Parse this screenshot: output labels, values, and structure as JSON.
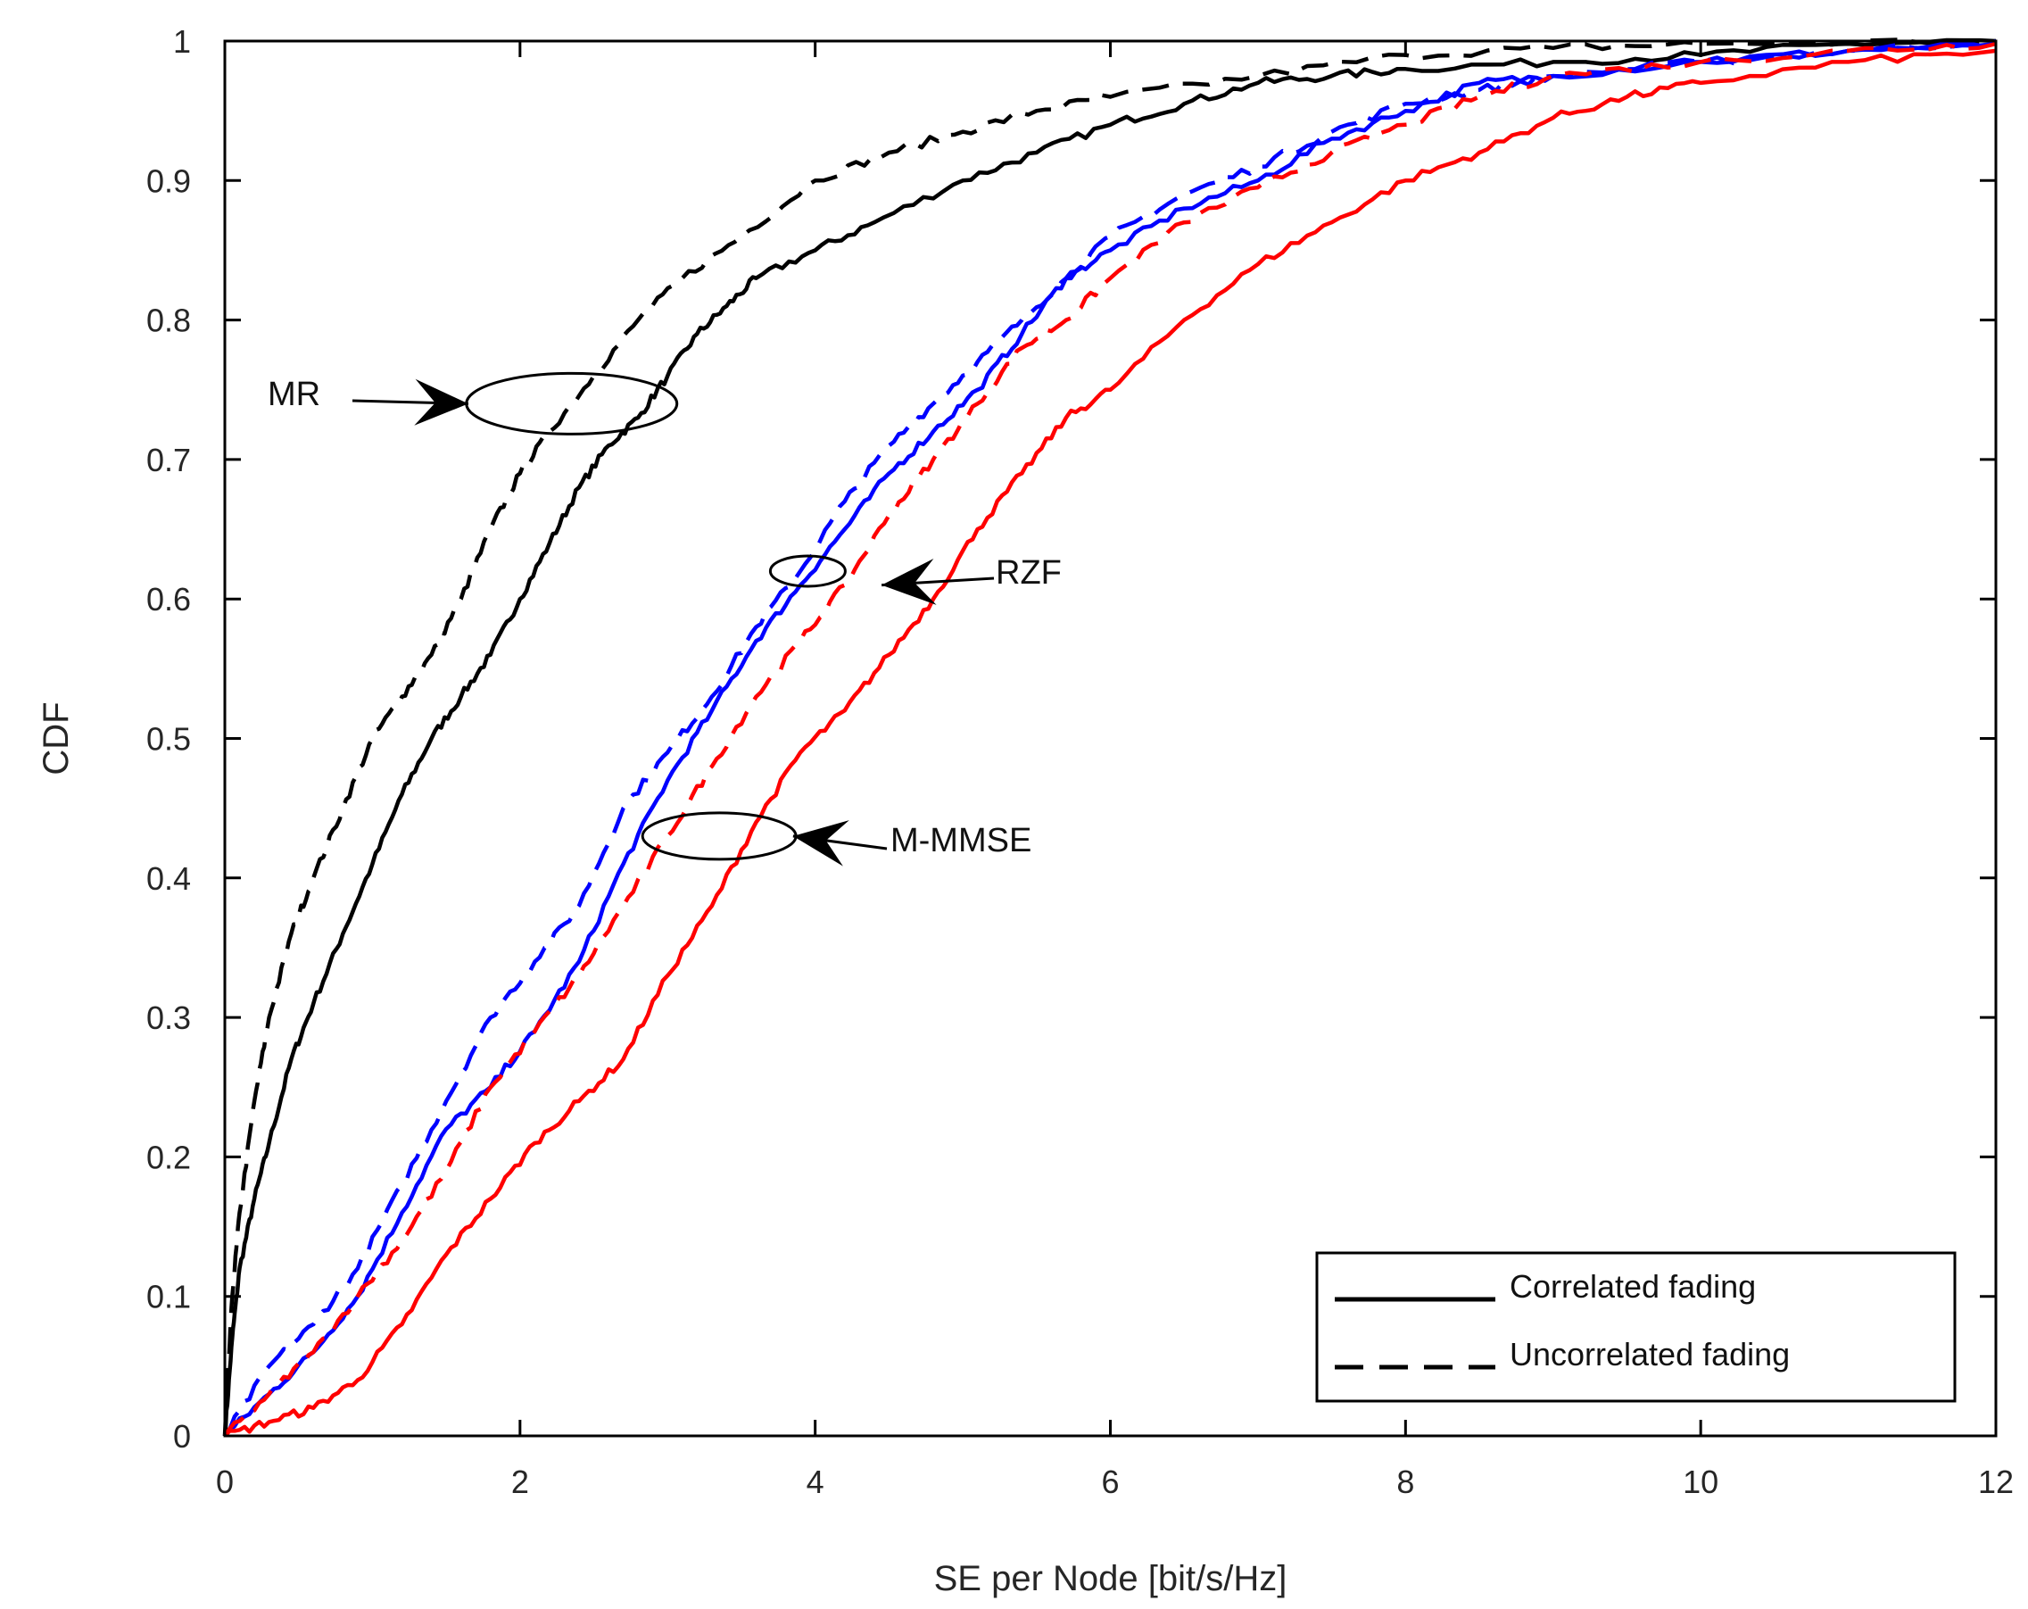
{
  "chart_data": {
    "type": "line",
    "title": "",
    "xlabel": "SE per Node [bit/s/Hz]",
    "ylabel": "CDF",
    "xlim": [
      0,
      12
    ],
    "ylim": [
      0,
      1
    ],
    "xticks": [
      0,
      2,
      4,
      6,
      8,
      10,
      12
    ],
    "xtick_labels": [
      "0",
      "2",
      "4",
      "6",
      "8",
      "10",
      "12"
    ],
    "yticks": [
      0,
      0.1,
      0.2,
      0.3,
      0.4,
      0.5,
      0.6,
      0.7,
      0.8,
      0.9,
      1
    ],
    "ytick_labels": [
      "0",
      "0.1",
      "0.2",
      "0.3",
      "0.4",
      "0.5",
      "0.6",
      "0.7",
      "0.8",
      "0.9",
      "1"
    ],
    "grid": false,
    "series": [
      {
        "name": "MR - Correlated fading",
        "color": "#000000",
        "dash": "solid",
        "points": [
          [
            0,
            0
          ],
          [
            0.05,
            0.07
          ],
          [
            0.1,
            0.12
          ],
          [
            0.2,
            0.17
          ],
          [
            0.3,
            0.21
          ],
          [
            0.45,
            0.27
          ],
          [
            0.6,
            0.31
          ],
          [
            0.8,
            0.36
          ],
          [
            1.0,
            0.41
          ],
          [
            1.2,
            0.46
          ],
          [
            1.4,
            0.5
          ],
          [
            1.6,
            0.53
          ],
          [
            1.8,
            0.56
          ],
          [
            2.0,
            0.6
          ],
          [
            2.2,
            0.64
          ],
          [
            2.4,
            0.68
          ],
          [
            2.6,
            0.71
          ],
          [
            2.8,
            0.73
          ],
          [
            3.0,
            0.76
          ],
          [
            3.2,
            0.79
          ],
          [
            3.4,
            0.81
          ],
          [
            3.6,
            0.83
          ],
          [
            4.0,
            0.85
          ],
          [
            4.4,
            0.87
          ],
          [
            5.0,
            0.9
          ],
          [
            5.5,
            0.92
          ],
          [
            6.0,
            0.94
          ],
          [
            6.5,
            0.955
          ],
          [
            7.0,
            0.97
          ],
          [
            7.5,
            0.975
          ],
          [
            8.0,
            0.98
          ],
          [
            9.0,
            0.985
          ],
          [
            10.0,
            0.99
          ],
          [
            11.0,
            0.998
          ],
          [
            12.0,
            1.0
          ]
        ]
      },
      {
        "name": "MR - Uncorrelated fading",
        "color": "#000000",
        "dash": "dashed",
        "points": [
          [
            0,
            0
          ],
          [
            0.05,
            0.1
          ],
          [
            0.1,
            0.16
          ],
          [
            0.2,
            0.24
          ],
          [
            0.3,
            0.3
          ],
          [
            0.45,
            0.36
          ],
          [
            0.6,
            0.4
          ],
          [
            0.8,
            0.45
          ],
          [
            1.0,
            0.5
          ],
          [
            1.2,
            0.53
          ],
          [
            1.4,
            0.56
          ],
          [
            1.6,
            0.6
          ],
          [
            1.8,
            0.65
          ],
          [
            2.0,
            0.69
          ],
          [
            2.2,
            0.72
          ],
          [
            2.5,
            0.76
          ],
          [
            2.8,
            0.8
          ],
          [
            3.1,
            0.83
          ],
          [
            3.5,
            0.86
          ],
          [
            4.0,
            0.9
          ],
          [
            4.5,
            0.92
          ],
          [
            5.0,
            0.935
          ],
          [
            5.5,
            0.95
          ],
          [
            6.0,
            0.96
          ],
          [
            7.0,
            0.975
          ],
          [
            8.0,
            0.99
          ],
          [
            9.0,
            0.995
          ],
          [
            10.0,
            0.998
          ],
          [
            12.0,
            1.0
          ]
        ]
      },
      {
        "name": "RZF - Correlated fading",
        "color": "#0000ff",
        "dash": "solid",
        "points": [
          [
            0,
            0
          ],
          [
            0.3,
            0.03
          ],
          [
            0.6,
            0.06
          ],
          [
            0.9,
            0.1
          ],
          [
            1.2,
            0.16
          ],
          [
            1.5,
            0.22
          ],
          [
            1.8,
            0.25
          ],
          [
            2.1,
            0.29
          ],
          [
            2.4,
            0.34
          ],
          [
            2.7,
            0.41
          ],
          [
            3.0,
            0.47
          ],
          [
            3.3,
            0.52
          ],
          [
            3.6,
            0.57
          ],
          [
            3.9,
            0.61
          ],
          [
            4.2,
            0.65
          ],
          [
            4.5,
            0.69
          ],
          [
            4.8,
            0.72
          ],
          [
            5.1,
            0.75
          ],
          [
            5.4,
            0.79
          ],
          [
            5.7,
            0.83
          ],
          [
            6.0,
            0.85
          ],
          [
            6.5,
            0.88
          ],
          [
            7.0,
            0.9
          ],
          [
            7.5,
            0.93
          ],
          [
            8.0,
            0.95
          ],
          [
            8.5,
            0.97
          ],
          [
            9.0,
            0.975
          ],
          [
            10.0,
            0.985
          ],
          [
            11.0,
            0.993
          ],
          [
            12.0,
            0.998
          ]
        ]
      },
      {
        "name": "RZF - Uncorrelated fading",
        "color": "#0000ff",
        "dash": "dashed",
        "points": [
          [
            0,
            0
          ],
          [
            0.3,
            0.05
          ],
          [
            0.6,
            0.08
          ],
          [
            0.9,
            0.12
          ],
          [
            1.2,
            0.18
          ],
          [
            1.5,
            0.24
          ],
          [
            1.8,
            0.3
          ],
          [
            2.1,
            0.34
          ],
          [
            2.4,
            0.38
          ],
          [
            2.7,
            0.45
          ],
          [
            3.0,
            0.49
          ],
          [
            3.3,
            0.53
          ],
          [
            3.6,
            0.58
          ],
          [
            3.9,
            0.62
          ],
          [
            4.2,
            0.67
          ],
          [
            4.5,
            0.71
          ],
          [
            4.8,
            0.74
          ],
          [
            5.1,
            0.77
          ],
          [
            5.4,
            0.8
          ],
          [
            5.7,
            0.83
          ],
          [
            6.0,
            0.86
          ],
          [
            6.5,
            0.89
          ],
          [
            7.0,
            0.91
          ],
          [
            7.5,
            0.935
          ],
          [
            8.0,
            0.955
          ],
          [
            8.5,
            0.965
          ],
          [
            9.0,
            0.975
          ],
          [
            10.0,
            0.985
          ],
          [
            11.0,
            0.993
          ],
          [
            12.0,
            1.0
          ]
        ]
      },
      {
        "name": "M-MMSE - Correlated fading",
        "color": "#ff0000",
        "dash": "solid",
        "points": [
          [
            0,
            0
          ],
          [
            0.3,
            0.01
          ],
          [
            0.6,
            0.02
          ],
          [
            0.9,
            0.04
          ],
          [
            1.2,
            0.08
          ],
          [
            1.5,
            0.13
          ],
          [
            1.8,
            0.17
          ],
          [
            2.1,
            0.21
          ],
          [
            2.4,
            0.24
          ],
          [
            2.7,
            0.27
          ],
          [
            3.0,
            0.33
          ],
          [
            3.3,
            0.38
          ],
          [
            3.6,
            0.44
          ],
          [
            3.9,
            0.49
          ],
          [
            4.2,
            0.52
          ],
          [
            4.5,
            0.56
          ],
          [
            4.8,
            0.6
          ],
          [
            5.1,
            0.65
          ],
          [
            5.4,
            0.69
          ],
          [
            5.7,
            0.73
          ],
          [
            6.0,
            0.75
          ],
          [
            6.5,
            0.8
          ],
          [
            7.0,
            0.84
          ],
          [
            7.5,
            0.87
          ],
          [
            8.0,
            0.9
          ],
          [
            8.5,
            0.92
          ],
          [
            9.0,
            0.945
          ],
          [
            9.5,
            0.96
          ],
          [
            10.0,
            0.97
          ],
          [
            11.0,
            0.985
          ],
          [
            12.0,
            0.993
          ]
        ]
      },
      {
        "name": "M-MMSE - Uncorrelated fading",
        "color": "#ff0000",
        "dash": "dashed",
        "points": [
          [
            0,
            0
          ],
          [
            0.3,
            0.03
          ],
          [
            0.6,
            0.06
          ],
          [
            0.9,
            0.1
          ],
          [
            1.2,
            0.14
          ],
          [
            1.5,
            0.19
          ],
          [
            1.8,
            0.25
          ],
          [
            2.1,
            0.29
          ],
          [
            2.4,
            0.33
          ],
          [
            2.7,
            0.38
          ],
          [
            3.0,
            0.43
          ],
          [
            3.3,
            0.48
          ],
          [
            3.6,
            0.53
          ],
          [
            3.9,
            0.57
          ],
          [
            4.2,
            0.61
          ],
          [
            4.5,
            0.66
          ],
          [
            4.8,
            0.7
          ],
          [
            5.1,
            0.74
          ],
          [
            5.4,
            0.78
          ],
          [
            5.7,
            0.8
          ],
          [
            6.0,
            0.83
          ],
          [
            6.5,
            0.87
          ],
          [
            7.0,
            0.895
          ],
          [
            7.5,
            0.92
          ],
          [
            8.0,
            0.94
          ],
          [
            8.5,
            0.96
          ],
          [
            9.0,
            0.975
          ],
          [
            10.0,
            0.985
          ],
          [
            11.0,
            0.993
          ],
          [
            12.0,
            0.998
          ]
        ]
      }
    ],
    "annotations": [
      {
        "label": "MR",
        "ellipse_center": [
          2.35,
          0.74
        ],
        "arrow_tip": [
          1.65,
          0.74
        ]
      },
      {
        "label": "RZF",
        "ellipse_center": [
          3.95,
          0.62
        ],
        "arrow_tip": [
          4.45,
          0.61
        ]
      },
      {
        "label": "M-MMSE",
        "ellipse_center": [
          3.35,
          0.43
        ],
        "arrow_tip": [
          3.85,
          0.43
        ]
      }
    ],
    "legend": {
      "position": "bottom-right",
      "entries": [
        {
          "label": "Correlated fading",
          "dash": "solid",
          "color": "#000000"
        },
        {
          "label": "Uncorrelated fading",
          "dash": "dashed",
          "color": "#000000"
        }
      ]
    }
  }
}
